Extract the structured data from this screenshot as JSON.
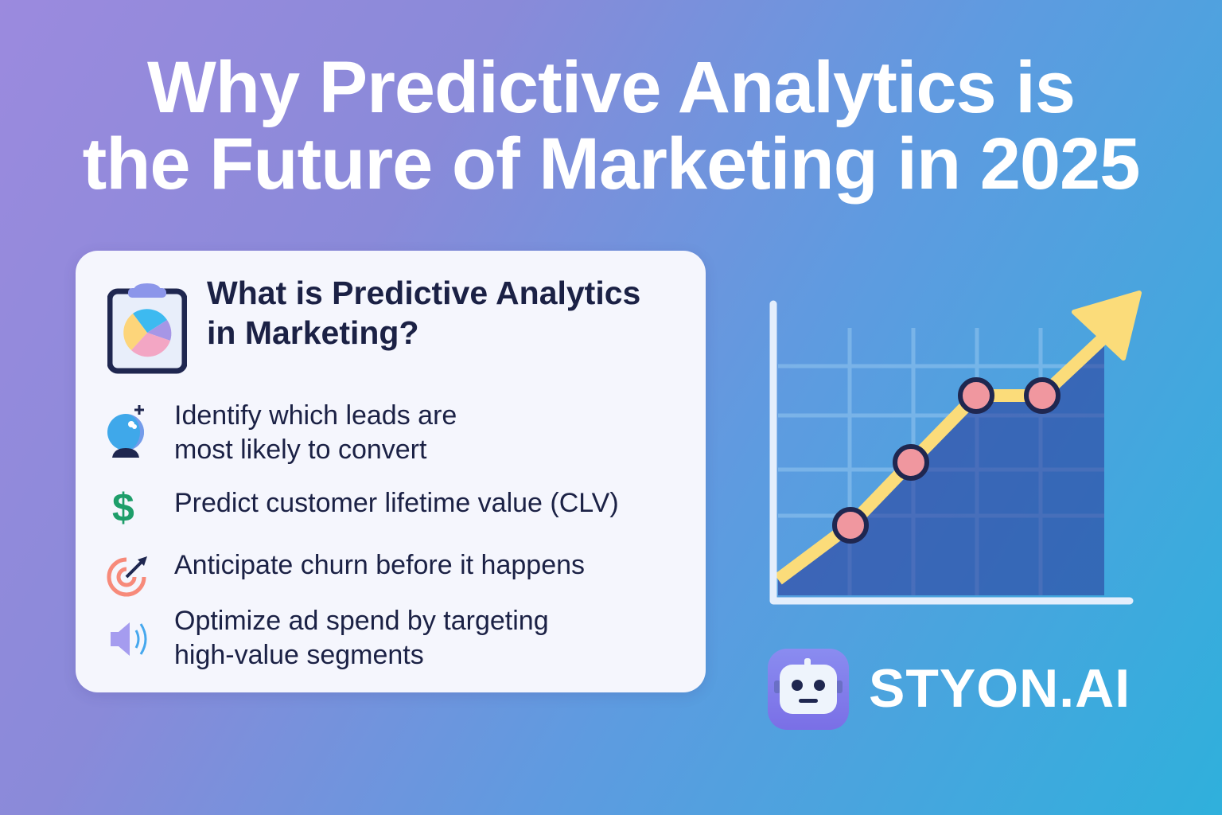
{
  "title": {
    "line1": "Why Predictive Analytics is",
    "line2": "the Future of Marketing in 2025"
  },
  "card": {
    "heading_line1": "What is Predictive Analytics",
    "heading_line2": "in Marketing?",
    "heading_icon": "clipboard-pie-chart-icon",
    "items": [
      {
        "icon": "crystal-ball-icon",
        "line1": "Identify which leads are",
        "line2": "most likely to convert"
      },
      {
        "icon": "dollar-icon",
        "line1": "Predict customer lifetime value (CLV)"
      },
      {
        "icon": "target-icon",
        "line1": "Anticipate churn before it happens"
      },
      {
        "icon": "megaphone-icon",
        "line1": "Optimize ad spend by targeting",
        "line2": "high-value segments"
      }
    ]
  },
  "illustration": {
    "icon": "growth-chart-arrow-icon"
  },
  "brand": {
    "name": "STYON.AI",
    "icon": "robot-logo-icon"
  },
  "colors": {
    "card_bg": "#f5f6fd",
    "text_dark": "#1b2145",
    "line": "#fbdc7a",
    "point": "#f0979f",
    "dollar": "#1e9e6a"
  }
}
